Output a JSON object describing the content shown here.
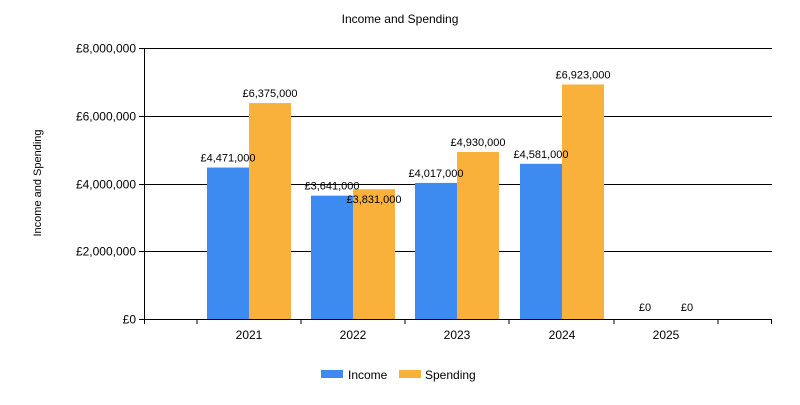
{
  "chart_data": {
    "type": "bar",
    "title": "Income and Spending",
    "xlabel": "",
    "ylabel": "Income and Spending",
    "categories": [
      "2021",
      "2022",
      "2023",
      "2024",
      "2025"
    ],
    "series": [
      {
        "name": "Income",
        "color": "#3d8af0",
        "values": [
          4471000,
          3641000,
          4017000,
          4581000,
          0
        ],
        "labels": [
          "£4,471,000",
          "£3,641,000",
          "£4,017,000",
          "£4,581,000",
          "£0"
        ]
      },
      {
        "name": "Spending",
        "color": "#f9b13b",
        "values": [
          6375000,
          3831000,
          4930000,
          6923000,
          0
        ],
        "labels": [
          "£6,375,000",
          "£3,831,000",
          "£4,930,000",
          "£6,923,000",
          "£0"
        ]
      }
    ],
    "ylim": [
      0,
      8000000
    ],
    "yticks": [
      0,
      2000000,
      4000000,
      6000000,
      8000000
    ],
    "ytick_labels": [
      "£0",
      "£2,000,000",
      "£4,000,000",
      "£6,000,000",
      "£8,000,000"
    ],
    "grid": true,
    "legend_position": "bottom-center"
  }
}
